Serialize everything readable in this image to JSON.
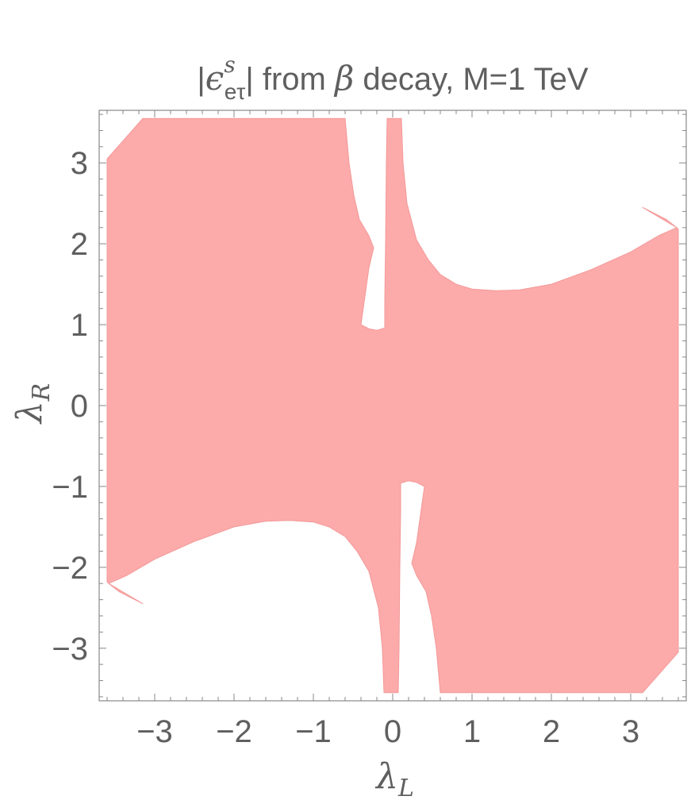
{
  "chart_data": {
    "type": "area",
    "title": {
      "left_bar": "|",
      "symbol": "ϵ",
      "superscript": "s",
      "subscript": "eτ",
      "right_bar": "|",
      "text_1": " from ",
      "symbol_2": "β",
      "text_2": " decay, M=1 TeV"
    },
    "xlabel": {
      "main": "λ",
      "sub": "L"
    },
    "ylabel": {
      "main": "λ",
      "sub": "R"
    },
    "xlim": [
      -3.7,
      3.7
    ],
    "ylim": [
      -3.65,
      3.65
    ],
    "x_ticks": [
      -3,
      -2,
      -1,
      0,
      1,
      2,
      3
    ],
    "y_ticks": [
      -3,
      -2,
      -1,
      0,
      1,
      2,
      3
    ],
    "x_tick_labels": [
      "−3",
      "−2",
      "−1",
      "0",
      "1",
      "2",
      "3"
    ],
    "y_tick_labels": [
      "−3",
      "−2",
      "−1",
      "0",
      "1",
      "2",
      "3"
    ],
    "region_color": "#fdaaaa",
    "region_stroke": "#f39a9a",
    "frame_color": "#888888",
    "grid": false,
    "legend": "none",
    "allowed_region": [
      {
        "name": "main-region",
        "points": [
          [
            -3.6,
            3.05
          ],
          [
            -3.15,
            3.55
          ],
          [
            -0.6,
            3.55
          ],
          [
            -0.55,
            3.0
          ],
          [
            -0.49,
            2.6
          ],
          [
            -0.42,
            2.3
          ],
          [
            -0.3,
            2.1
          ],
          [
            -0.24,
            1.95
          ],
          [
            -0.3,
            1.7
          ],
          [
            -0.4,
            1.0
          ],
          [
            -0.3,
            0.95
          ],
          [
            -0.2,
            0.93
          ],
          [
            -0.1,
            0.96
          ],
          [
            -0.1,
            1.3
          ],
          [
            -0.09,
            2.0
          ],
          [
            -0.08,
            3.0
          ],
          [
            -0.07,
            3.55
          ],
          [
            0.11,
            3.55
          ],
          [
            0.13,
            3.0
          ],
          [
            0.18,
            2.5
          ],
          [
            0.3,
            2.05
          ],
          [
            0.45,
            1.8
          ],
          [
            0.6,
            1.62
          ],
          [
            0.8,
            1.5
          ],
          [
            1.0,
            1.44
          ],
          [
            1.3,
            1.42
          ],
          [
            1.6,
            1.43
          ],
          [
            2.0,
            1.5
          ],
          [
            2.5,
            1.68
          ],
          [
            3.0,
            1.9
          ],
          [
            3.35,
            2.1
          ],
          [
            3.58,
            2.2
          ],
          [
            3.6,
            2.18
          ],
          [
            3.6,
            -3.05
          ],
          [
            3.15,
            -3.55
          ],
          [
            0.6,
            -3.55
          ],
          [
            0.55,
            -3.0
          ],
          [
            0.49,
            -2.6
          ],
          [
            0.42,
            -2.3
          ],
          [
            0.3,
            -2.1
          ],
          [
            0.24,
            -1.95
          ],
          [
            0.3,
            -1.7
          ],
          [
            0.4,
            -1.0
          ],
          [
            0.3,
            -0.95
          ],
          [
            0.2,
            -0.93
          ],
          [
            0.1,
            -0.96
          ],
          [
            0.1,
            -1.3
          ],
          [
            0.09,
            -2.0
          ],
          [
            0.08,
            -3.0
          ],
          [
            0.07,
            -3.55
          ],
          [
            -0.11,
            -3.55
          ],
          [
            -0.13,
            -3.0
          ],
          [
            -0.18,
            -2.5
          ],
          [
            -0.3,
            -2.05
          ],
          [
            -0.45,
            -1.8
          ],
          [
            -0.6,
            -1.62
          ],
          [
            -0.8,
            -1.5
          ],
          [
            -1.0,
            -1.44
          ],
          [
            -1.3,
            -1.42
          ],
          [
            -1.6,
            -1.43
          ],
          [
            -2.0,
            -1.5
          ],
          [
            -2.5,
            -1.68
          ],
          [
            -3.0,
            -1.9
          ],
          [
            -3.35,
            -2.1
          ],
          [
            -3.58,
            -2.2
          ],
          [
            -3.6,
            -2.18
          ]
        ]
      },
      {
        "name": "upper-right-sliver",
        "points": [
          [
            3.15,
            2.45
          ],
          [
            3.58,
            2.2
          ],
          [
            3.45,
            2.3
          ]
        ]
      },
      {
        "name": "lower-left-sliver",
        "points": [
          [
            -3.15,
            -2.45
          ],
          [
            -3.58,
            -2.2
          ],
          [
            -3.45,
            -2.3
          ]
        ]
      }
    ]
  }
}
